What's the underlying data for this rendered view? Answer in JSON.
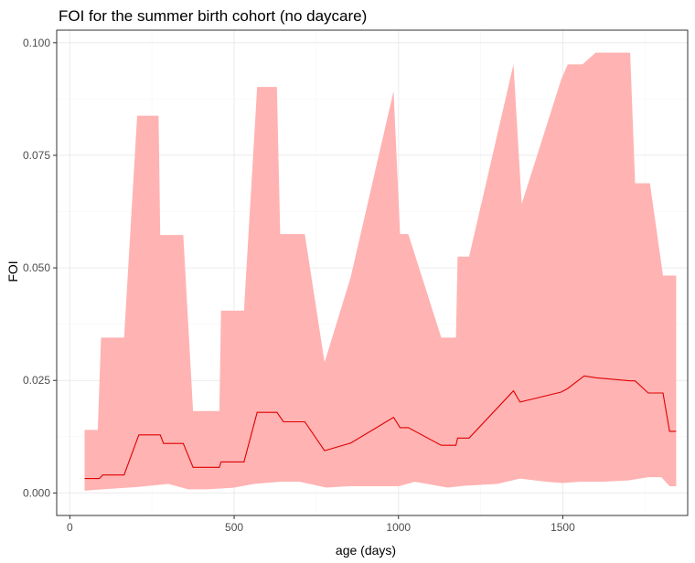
{
  "chart_data": {
    "type": "area",
    "title": "FOI for the summer birth cohort (no daycare)",
    "xlabel": "age (days)",
    "ylabel": "FOI",
    "xlim": [
      -40,
      1880
    ],
    "ylim": [
      -0.005,
      0.1028
    ],
    "x_ticks": [
      0,
      500,
      1000,
      1500
    ],
    "x_tick_labels": [
      "0",
      "500",
      "1000",
      "1500"
    ],
    "y_ticks": [
      0,
      0.025,
      0.05,
      0.075,
      0.1
    ],
    "y_tick_labels": [
      "0.000",
      "0.025",
      "0.050",
      "0.075",
      "0.100"
    ],
    "grid": true,
    "legend": "none",
    "colors": {
      "ribbon": "#ffb3b3",
      "line": "#e00000",
      "grid_major": "#ebebeb",
      "grid_minor": "#f5f5f5",
      "panel_border": "#333333"
    },
    "series": [
      {
        "role": "upper-bound",
        "x": [
          45,
          85,
          95,
          165,
          205,
          270,
          275,
          345,
          375,
          455,
          460,
          530,
          570,
          630,
          640,
          715,
          775,
          855,
          985,
          1005,
          1030,
          1130,
          1175,
          1180,
          1215,
          1350,
          1375,
          1495,
          1515,
          1560,
          1600,
          1705,
          1720,
          1765,
          1805,
          1825,
          1845
        ],
        "y": [
          0.014,
          0.014,
          0.0345,
          0.0345,
          0.0838,
          0.0838,
          0.0573,
          0.0573,
          0.0182,
          0.0182,
          0.0405,
          0.0405,
          0.0902,
          0.0902,
          0.0575,
          0.0575,
          0.029,
          0.048,
          0.0893,
          0.0575,
          0.0575,
          0.0345,
          0.0345,
          0.0525,
          0.0525,
          0.0952,
          0.0642,
          0.0918,
          0.0952,
          0.0952,
          0.0978,
          0.0978,
          0.0688,
          0.0688,
          0.0483,
          0.0483,
          0.0483
        ]
      },
      {
        "role": "lower-bound",
        "x": [
          45,
          100,
          200,
          300,
          360,
          420,
          500,
          560,
          640,
          700,
          780,
          850,
          1000,
          1050,
          1150,
          1200,
          1300,
          1370,
          1450,
          1500,
          1550,
          1620,
          1700,
          1760,
          1800,
          1825,
          1845
        ],
        "y": [
          0.0005,
          0.0008,
          0.0013,
          0.002,
          0.0008,
          0.0008,
          0.0012,
          0.002,
          0.0025,
          0.0025,
          0.0012,
          0.0015,
          0.0015,
          0.0025,
          0.0012,
          0.0016,
          0.002,
          0.0032,
          0.0025,
          0.0022,
          0.0025,
          0.0025,
          0.0028,
          0.0035,
          0.0035,
          0.0015,
          0.0015
        ]
      },
      {
        "role": "estimate",
        "x": [
          45,
          90,
          100,
          165,
          210,
          275,
          285,
          345,
          375,
          455,
          460,
          530,
          570,
          630,
          650,
          715,
          775,
          855,
          985,
          1005,
          1030,
          1130,
          1175,
          1180,
          1215,
          1350,
          1370,
          1495,
          1515,
          1565,
          1600,
          1705,
          1720,
          1760,
          1805,
          1825,
          1845
        ],
        "y": [
          0.0032,
          0.0032,
          0.004,
          0.004,
          0.0129,
          0.0129,
          0.011,
          0.011,
          0.0057,
          0.0057,
          0.0069,
          0.0069,
          0.0179,
          0.0179,
          0.0158,
          0.0158,
          0.0094,
          0.0111,
          0.0168,
          0.0145,
          0.0145,
          0.0106,
          0.0106,
          0.0122,
          0.0122,
          0.0227,
          0.0202,
          0.0224,
          0.0232,
          0.026,
          0.0256,
          0.0249,
          0.0249,
          0.0222,
          0.0222,
          0.0137,
          0.0137
        ]
      }
    ]
  }
}
